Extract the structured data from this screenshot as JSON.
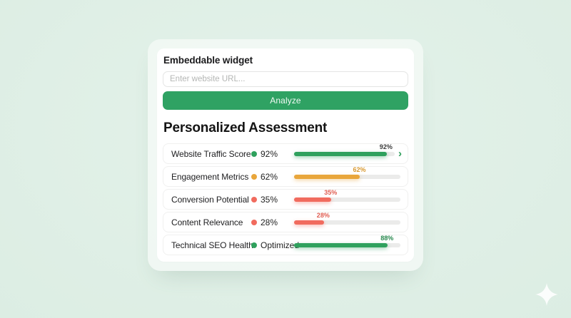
{
  "page": {
    "background_color": "#dcede3",
    "card_color": "#ffffff"
  },
  "widget": {
    "title": "Embeddable widget",
    "url_input": {
      "placeholder": "Enter website URL...",
      "value": ""
    },
    "analyze_button_label": "Analyze",
    "analyze_button_color": "#2fa263"
  },
  "assessment": {
    "title": "Personalized Assessment",
    "rows": [
      {
        "label": "Website Traffic Score",
        "status_color": "#2fa15d",
        "value": "92%",
        "bar": {
          "percent": 92,
          "color": "#2fa15d",
          "glow": "rgba(47,161,93,0.45)",
          "label": "92%",
          "label_color": "#3b3b3b"
        },
        "has_chevron": true
      },
      {
        "label": "Engagement Metrics",
        "status_color": "#e9a63b",
        "value": "62%",
        "bar": {
          "percent": 62,
          "color": "#e9a63b",
          "glow": "rgba(233,166,59,0.45)",
          "label": "62%",
          "label_color": "#d8982e"
        },
        "has_chevron": false
      },
      {
        "label": "Conversion Potential",
        "status_color": "#f16b5e",
        "value": "35%",
        "bar": {
          "percent": 35,
          "color": "#f16b5e",
          "glow": "rgba(241,107,94,0.45)",
          "label": "35%",
          "label_color": "#e05c50"
        },
        "has_chevron": false
      },
      {
        "label": "Content Relevance",
        "status_color": "#f16b5e",
        "value": "28%",
        "bar": {
          "percent": 28,
          "color": "#f16b5e",
          "glow": "rgba(241,107,94,0.45)",
          "label": "28%",
          "label_color": "#e05c50"
        },
        "has_chevron": false
      },
      {
        "label": "Technical SEO Health",
        "status_color": "#2fa15d",
        "value": "Optimized",
        "bar": {
          "percent": 88,
          "color": "#2fa15d",
          "glow": "rgba(47,161,93,0.45)",
          "label": "88%",
          "label_color": "#27884d"
        },
        "has_chevron": false
      }
    ]
  },
  "icons": {
    "chevron_right": "›",
    "sparkle_color": "#fbfdfc",
    "chevron_color": "#2f9e5b",
    "bar_track_color": "#ebebea"
  }
}
